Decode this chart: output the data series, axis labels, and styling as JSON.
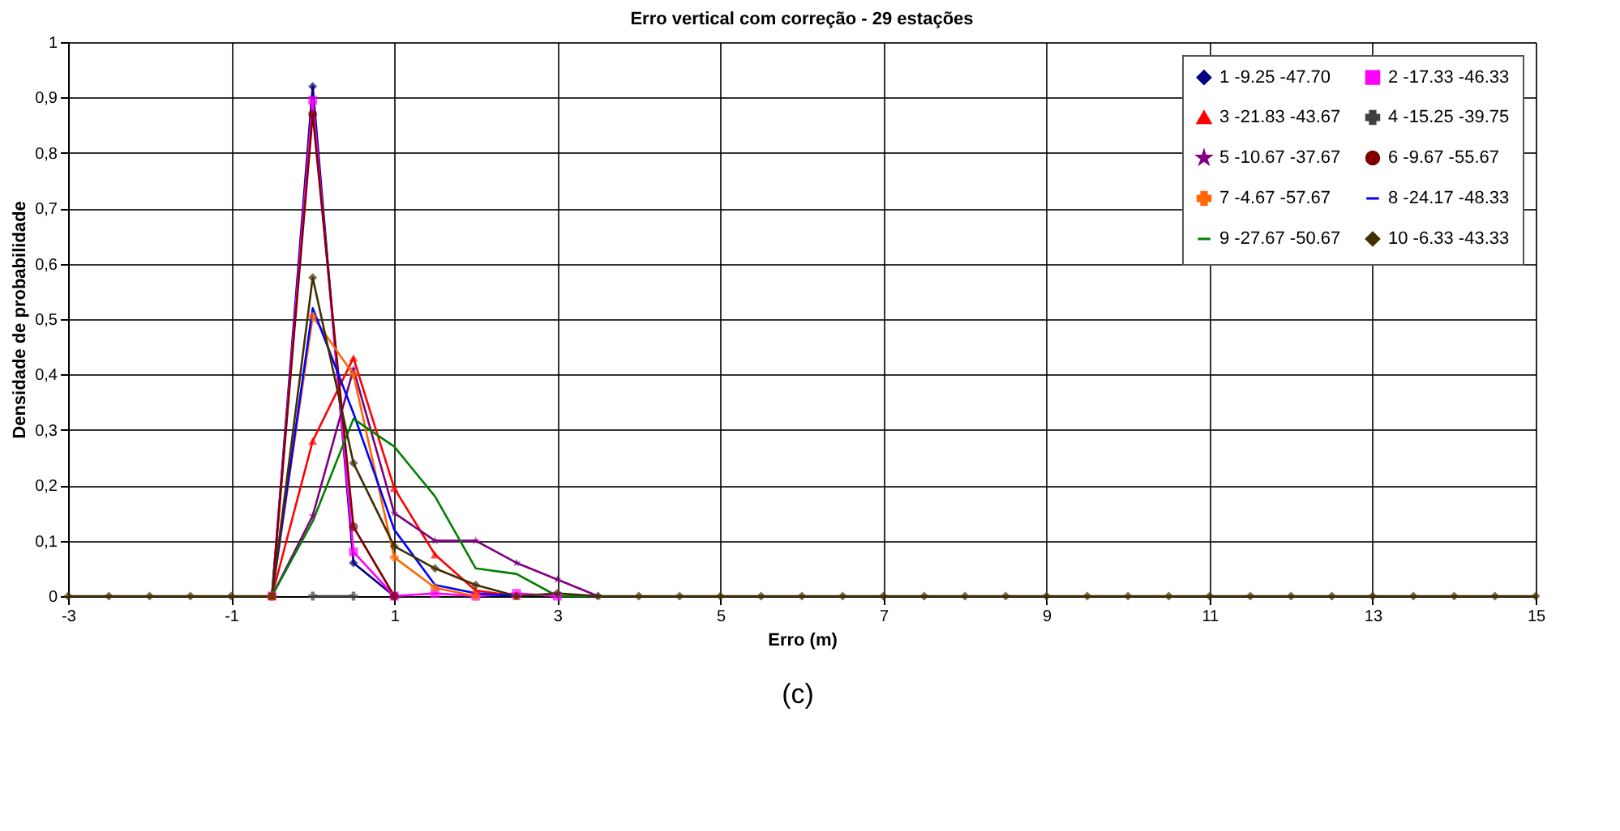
{
  "chart_data": {
    "type": "line",
    "title": "Erro vertical com correção - 29 estações",
    "xlabel": "Erro (m)",
    "ylabel": "Densidade de probabilidade",
    "annotations": [
      "(c)"
    ],
    "x": [
      -3,
      -2.5,
      -2,
      -1.5,
      -1,
      -0.5,
      0,
      0.5,
      1,
      1.5,
      2,
      2.5,
      3,
      3.5,
      4,
      4.5,
      5,
      5.5,
      6,
      6.5,
      7,
      7.5,
      8,
      8.5,
      9,
      9.5,
      10,
      10.5,
      11,
      11.5,
      12,
      12.5,
      13,
      13.5,
      14,
      14.5,
      15
    ],
    "xlim": [
      -3,
      15
    ],
    "xticks": [
      -3,
      -1,
      1,
      3,
      5,
      7,
      9,
      11,
      13,
      15
    ],
    "ylim": [
      0,
      1
    ],
    "yticks": [
      0,
      {
        "value": 0.1,
        "label": "0,1"
      },
      {
        "value": 0.2,
        "label": "0,2"
      },
      {
        "value": 0.3,
        "label": "0,3"
      },
      {
        "value": 0.4,
        "label": "0,4"
      },
      {
        "value": 0.5,
        "label": "0,5"
      },
      {
        "value": 0.6,
        "label": "0,6"
      },
      {
        "value": 0.7,
        "label": "0,7"
      },
      {
        "value": 0.8,
        "label": "0,8"
      },
      {
        "value": 0.9,
        "label": "0,9"
      },
      1
    ],
    "grid": true,
    "legend": "top right",
    "series": [
      {
        "name": "1 -9.25 -47.70",
        "color": "#000080",
        "marker": "diamond",
        "values": [
          null,
          null,
          null,
          null,
          null,
          0,
          0.92,
          0.06,
          0,
          null,
          null,
          null,
          null,
          null,
          null,
          null,
          null,
          null,
          null,
          null,
          null,
          null,
          null,
          null,
          null,
          null,
          null,
          null,
          null,
          null,
          null,
          null,
          null,
          null,
          null,
          null,
          null
        ]
      },
      {
        "name": "2 -17.33 -46.33",
        "color": "#ff00ff",
        "marker": "square",
        "values": [
          null,
          null,
          null,
          null,
          null,
          0,
          0.895,
          0.08,
          0,
          0.005,
          0,
          0.005,
          0,
          null,
          null,
          null,
          null,
          null,
          null,
          null,
          null,
          null,
          null,
          null,
          null,
          null,
          null,
          null,
          null,
          null,
          null,
          null,
          null,
          null,
          null,
          null,
          null
        ]
      },
      {
        "name": "3 -21.83 -43.67",
        "color": "#ff0000",
        "marker": "triangle",
        "values": [
          null,
          null,
          null,
          null,
          null,
          0,
          0.28,
          0.43,
          0.195,
          0.075,
          0.01,
          0,
          null,
          null,
          null,
          null,
          null,
          null,
          null,
          null,
          null,
          null,
          null,
          null,
          null,
          null,
          null,
          null,
          null,
          null,
          null,
          null,
          null,
          null,
          null,
          null,
          null
        ]
      },
      {
        "name": "4 -15.25 -39.75",
        "color": "#404040",
        "marker": "cross",
        "values": [
          null,
          null,
          null,
          null,
          null,
          null,
          0,
          0,
          null,
          null,
          null,
          null,
          null,
          null,
          null,
          null,
          null,
          null,
          null,
          null,
          null,
          null,
          null,
          null,
          null,
          null,
          null,
          null,
          null,
          null,
          null,
          null,
          null,
          null,
          null,
          null,
          null
        ]
      },
      {
        "name": "5 -10.67 -37.67",
        "color": "#800080",
        "marker": "star",
        "values": [
          null,
          null,
          null,
          null,
          null,
          0,
          0.145,
          0.41,
          0.15,
          0.1,
          0.1,
          0.06,
          0.03,
          0,
          null,
          null,
          null,
          null,
          null,
          null,
          null,
          null,
          null,
          null,
          null,
          null,
          null,
          null,
          null,
          null,
          null,
          null,
          null,
          null,
          null,
          null,
          null
        ]
      },
      {
        "name": "6 -9.67 -55.67",
        "color": "#800000",
        "marker": "circle",
        "values": [
          null,
          null,
          null,
          null,
          null,
          0,
          0.87,
          0.125,
          0,
          null,
          null,
          null,
          null,
          null,
          null,
          null,
          null,
          null,
          null,
          null,
          null,
          null,
          null,
          null,
          null,
          null,
          null,
          null,
          null,
          null,
          null,
          null,
          null,
          null,
          null,
          null,
          null
        ]
      },
      {
        "name": "7 -4.67 -57.67",
        "color": "#ff6600",
        "marker": "cross",
        "values": [
          null,
          null,
          null,
          null,
          null,
          0,
          0.505,
          0.4,
          0.07,
          0.015,
          0,
          null,
          null,
          null,
          null,
          null,
          null,
          null,
          null,
          null,
          null,
          null,
          null,
          null,
          null,
          null,
          null,
          null,
          null,
          null,
          null,
          null,
          null,
          null,
          null,
          null,
          null
        ]
      },
      {
        "name": "8 -24.17 -48.33",
        "color": "#0000ff",
        "marker": "none",
        "values": [
          null,
          null,
          null,
          null,
          null,
          0,
          0.52,
          0.33,
          0.12,
          0.02,
          0.005,
          0,
          null,
          null,
          null,
          null,
          null,
          null,
          null,
          null,
          null,
          null,
          null,
          null,
          null,
          null,
          null,
          null,
          null,
          null,
          null,
          null,
          null,
          null,
          null,
          null,
          null
        ]
      },
      {
        "name": "9 -27.67 -50.67",
        "color": "#008000",
        "marker": "none",
        "values": [
          null,
          null,
          null,
          null,
          null,
          0,
          0.135,
          0.32,
          0.27,
          0.18,
          0.05,
          0.04,
          0,
          0,
          null,
          null,
          null,
          null,
          null,
          null,
          null,
          null,
          null,
          null,
          null,
          null,
          null,
          null,
          null,
          null,
          null,
          null,
          null,
          null,
          null,
          null,
          null
        ]
      },
      {
        "name": "10 -6.33 -43.33",
        "color": "#403000",
        "marker": "diamond",
        "values": [
          0,
          0,
          0,
          0,
          0,
          0,
          0.575,
          0.24,
          0.09,
          0.05,
          0.02,
          0,
          0.005,
          0,
          0,
          0,
          0,
          0,
          0,
          0,
          0,
          0,
          0,
          0,
          0,
          0,
          0,
          0,
          0,
          0,
          0,
          0,
          0,
          0,
          0,
          0,
          0
        ]
      }
    ]
  }
}
